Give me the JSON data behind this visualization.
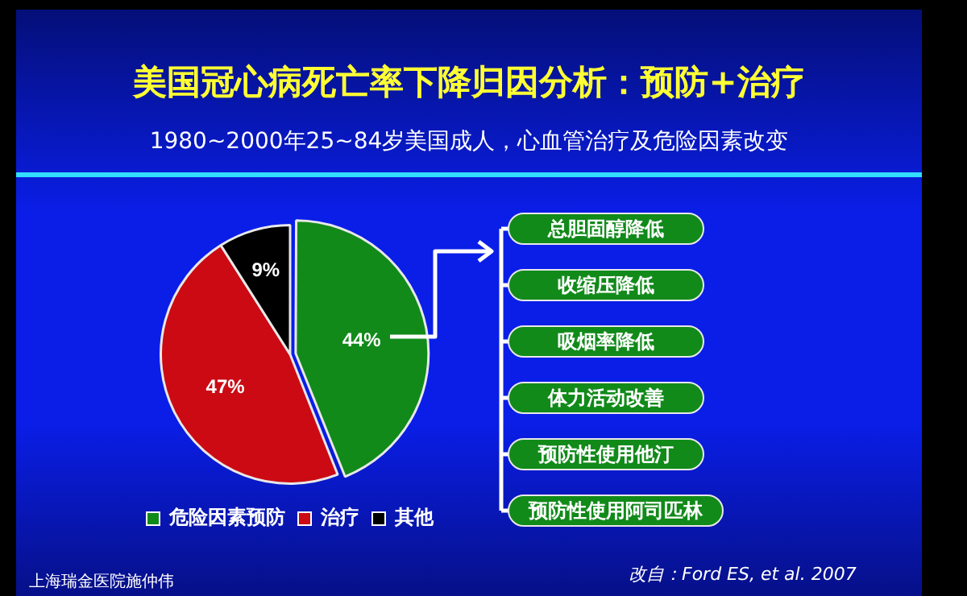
{
  "chart_data": {
    "type": "pie",
    "title": "美国冠心病死亡率下降归因分析：预防+治疗",
    "subtitle": "1980~2000年25~84岁美国成人，心血管治疗及危险因素改变",
    "categories": [
      "危险因素预防",
      "治疗",
      "其他"
    ],
    "values": [
      44,
      47,
      9
    ],
    "colors": [
      "#118a1a",
      "#cc0a14",
      "#000000"
    ],
    "value_labels": [
      "44%",
      "47%",
      "9%"
    ],
    "legend": "bottom",
    "annotations": [
      "总胆固醇降低",
      "收缩压降低",
      "吸烟率降低",
      "体力活动改善",
      "预防性使用他汀",
      "预防性使用阿司匹林",
      "改自：Ford ES, et al. 2007",
      "上海瑞金医院施仲伟"
    ]
  }
}
